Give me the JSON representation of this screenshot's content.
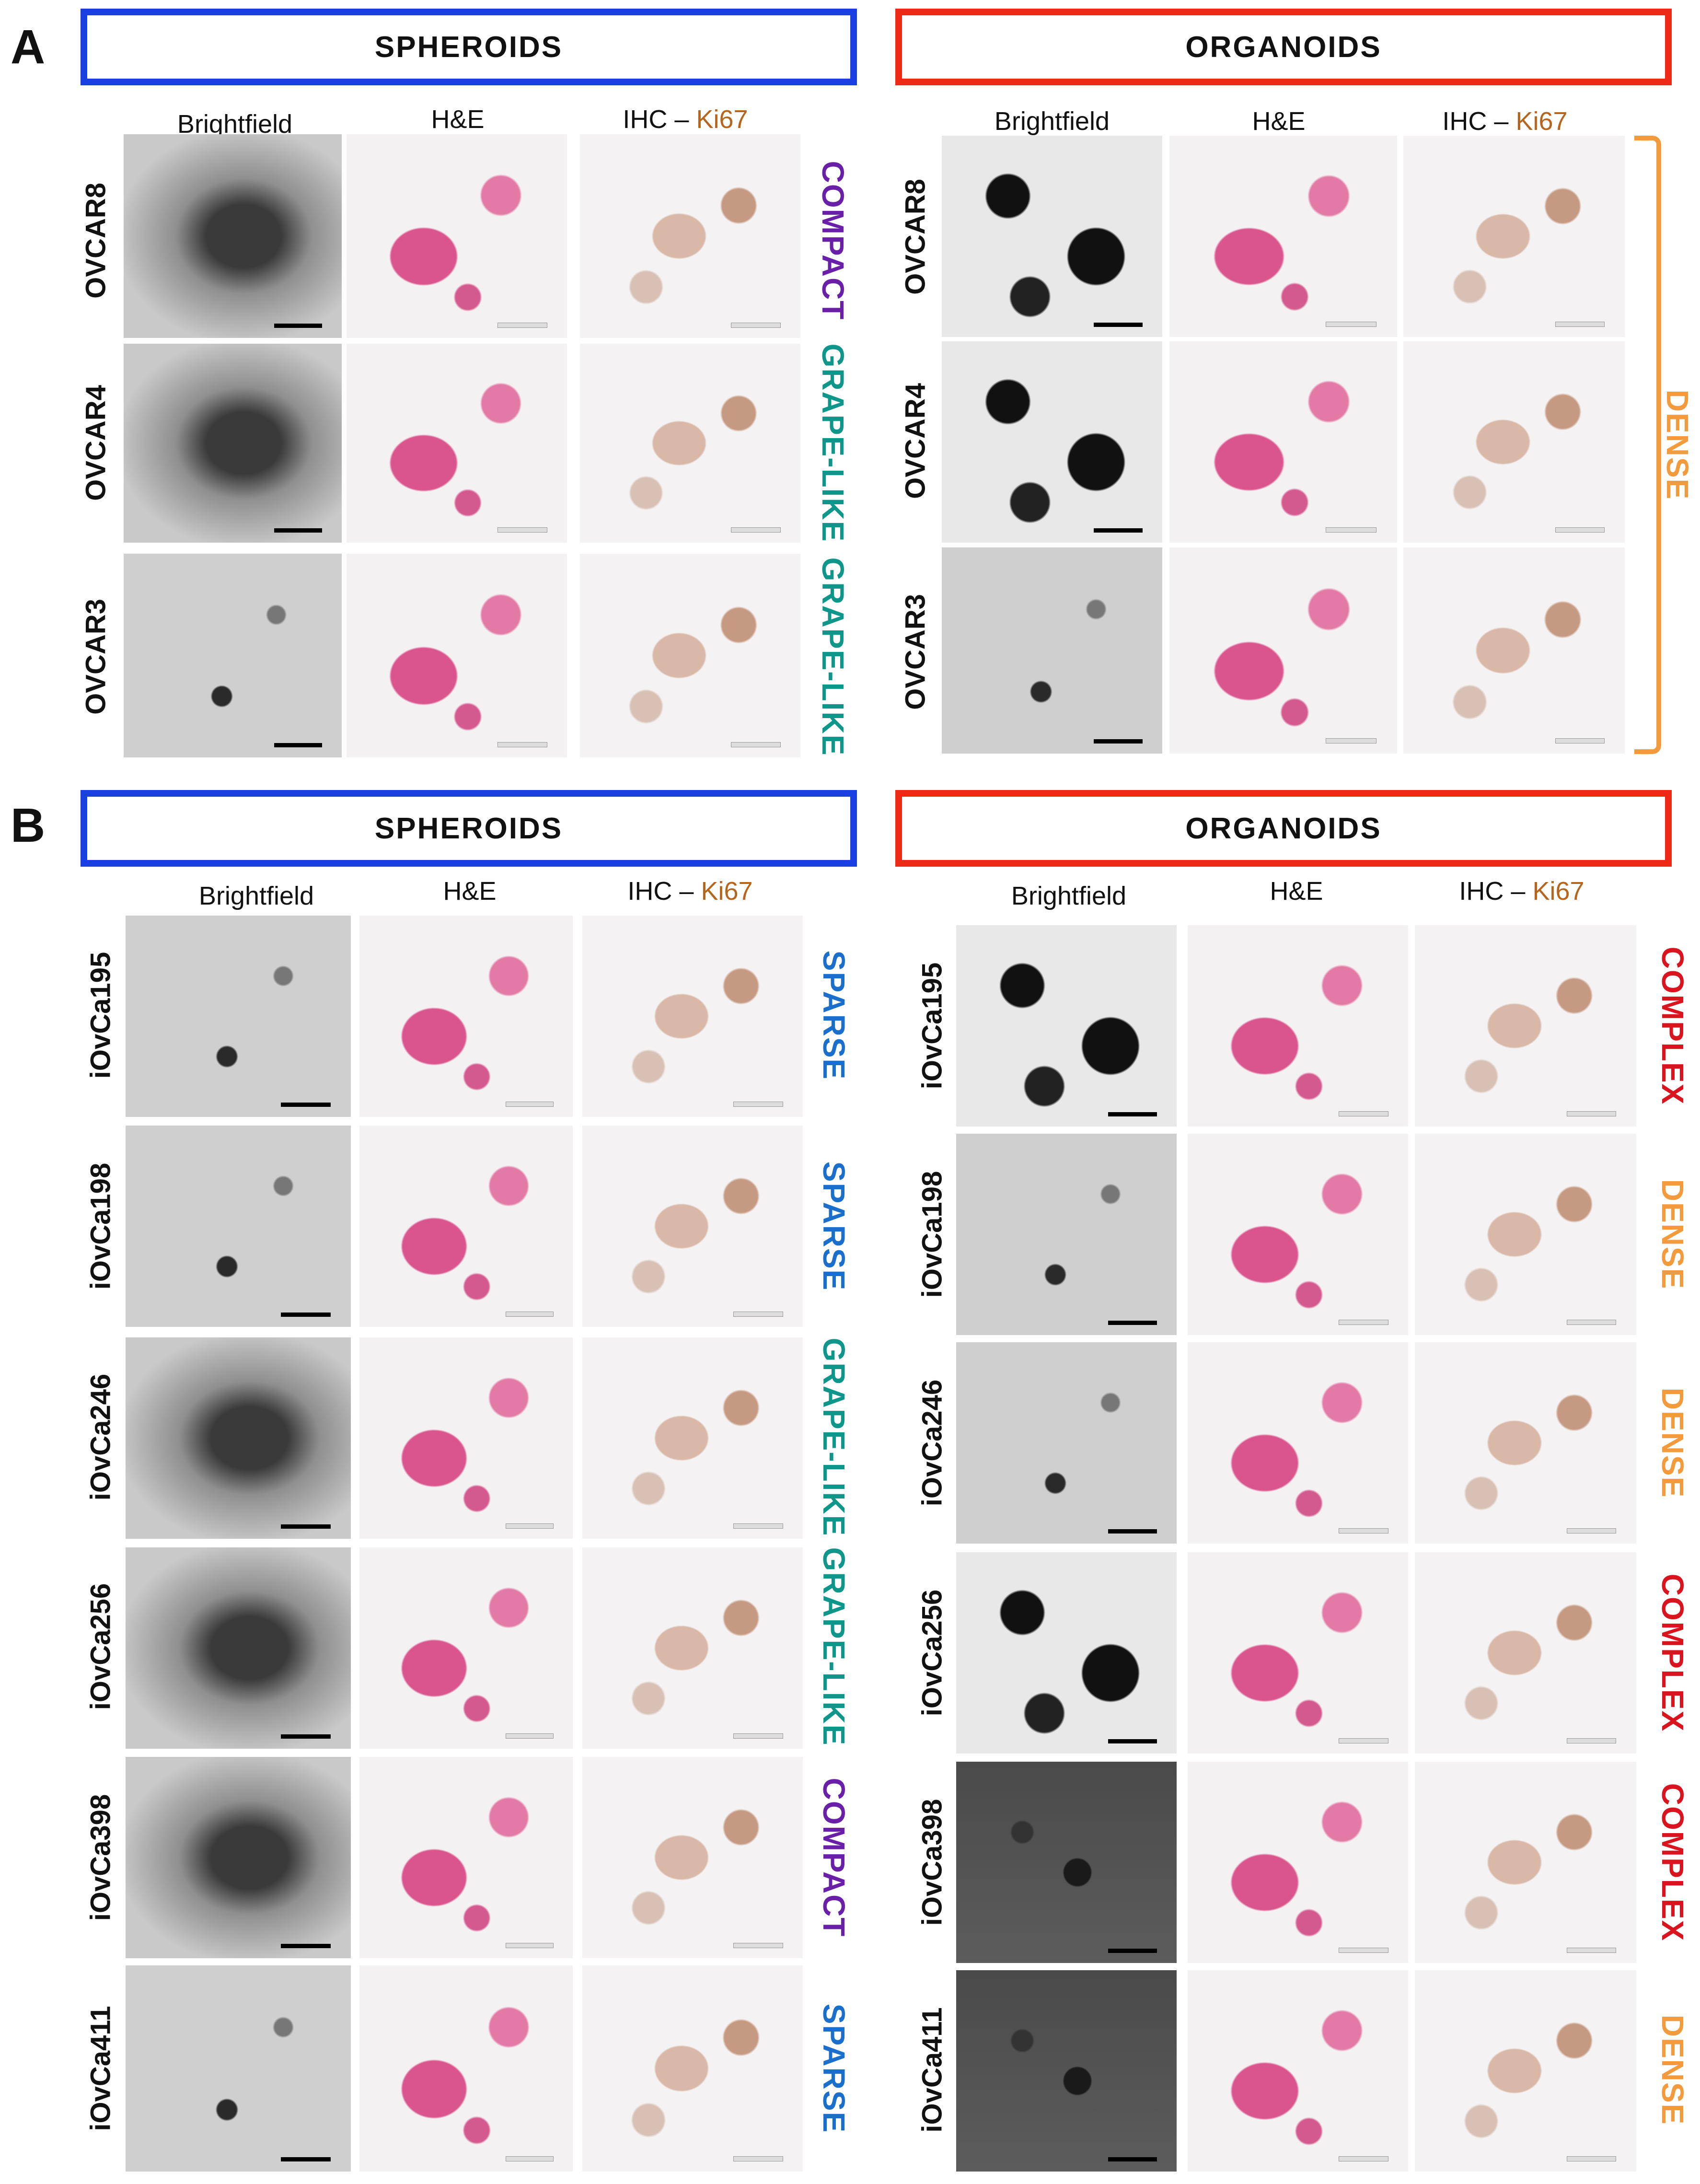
{
  "panels": {
    "A": {
      "letter": "A",
      "left_title": "SPHEROIDS",
      "right_title": "ORGANOIDS"
    },
    "B": {
      "letter": "B",
      "left_title": "SPHEROIDS",
      "right_title": "ORGANOIDS"
    }
  },
  "column_headers": {
    "brightfield": "Brightfield",
    "he": "H&E",
    "ihc_prefix": "IHC – ",
    "ihc_marker": "Ki67"
  },
  "colors": {
    "spheroids_border": "#1a3fe0",
    "organoids_border": "#ee2a16",
    "compact": "#6a1fa8",
    "grape_like": "#0f968b",
    "sparse": "#1a6fcc",
    "dense": "#f39a3c",
    "complex": "#d9141e",
    "ki67": "#b5651d"
  },
  "panelA": {
    "rows": [
      "OVCAR8",
      "OVCAR4",
      "OVCAR3"
    ],
    "spheroid_classes": [
      {
        "label": "COMPACT",
        "color": "#6a1fa8"
      },
      {
        "label": "GRAPE-LIKE",
        "color": "#0f968b"
      },
      {
        "label": "GRAPE-LIKE",
        "color": "#0f968b"
      }
    ],
    "organoid_class": {
      "label": "DENSE",
      "color": "#f39a3c"
    }
  },
  "panelB": {
    "rows": [
      "iOvCa195",
      "iOvCa198",
      "iOvCa246",
      "iOvCa256",
      "iOvCa398",
      "iOvCa411"
    ],
    "spheroid_classes": [
      {
        "label": "SPARSE",
        "color": "#1a6fcc"
      },
      {
        "label": "SPARSE",
        "color": "#1a6fcc"
      },
      {
        "label": "GRAPE-LIKE",
        "color": "#0f968b"
      },
      {
        "label": "GRAPE-LIKE",
        "color": "#0f968b"
      },
      {
        "label": "COMPACT",
        "color": "#6a1fa8"
      },
      {
        "label": "SPARSE",
        "color": "#1a6fcc"
      }
    ],
    "organoid_classes": [
      {
        "label": "COMPLEX",
        "color": "#d9141e"
      },
      {
        "label": "DENSE",
        "color": "#f39a3c"
      },
      {
        "label": "DENSE",
        "color": "#f39a3c"
      },
      {
        "label": "COMPLEX",
        "color": "#d9141e"
      },
      {
        "label": "COMPLEX",
        "color": "#d9141e"
      },
      {
        "label": "DENSE",
        "color": "#f39a3c"
      }
    ]
  }
}
